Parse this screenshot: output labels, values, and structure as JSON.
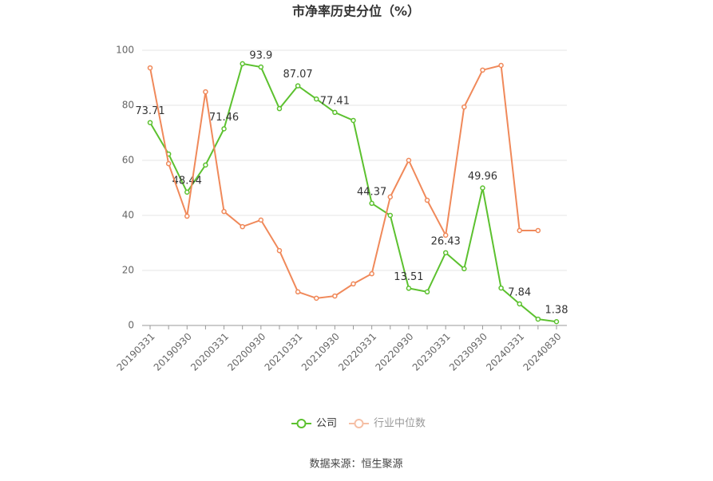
{
  "chart_data": {
    "type": "line",
    "title": "市净率历史分位（%）",
    "categories": [
      "20190331",
      null,
      "20190930",
      null,
      "20200331",
      null,
      "20200930",
      null,
      "20210331",
      null,
      "20210930",
      null,
      "20220331",
      null,
      "20220930",
      null,
      "20230331",
      null,
      "20230930",
      null,
      "20240331",
      null,
      "20240830"
    ],
    "series": [
      {
        "name": "公司",
        "color": "#5cc12f",
        "values": [
          73.71,
          62.3,
          48.44,
          58.3,
          71.46,
          95.1,
          93.9,
          78.8,
          87.07,
          82.3,
          77.41,
          74.5,
          44.37,
          40.0,
          13.51,
          12.2,
          26.43,
          20.6,
          49.96,
          13.6,
          7.84,
          2.3,
          1.38
        ]
      },
      {
        "name": "行业中位数",
        "color": "#f0895a",
        "values": [
          93.6,
          58.8,
          39.7,
          84.9,
          41.4,
          35.9,
          38.3,
          27.2,
          12.2,
          9.9,
          10.7,
          15.1,
          18.8,
          46.7,
          60.0,
          45.5,
          32.8,
          79.4,
          92.8,
          94.5,
          34.5,
          34.5,
          null
        ]
      }
    ],
    "ylim": [
      0,
      100
    ],
    "yticks": [
      0,
      20,
      40,
      60,
      80,
      100
    ],
    "grid": true,
    "legend": "bottom",
    "source": "数据来源：恒生聚源"
  }
}
